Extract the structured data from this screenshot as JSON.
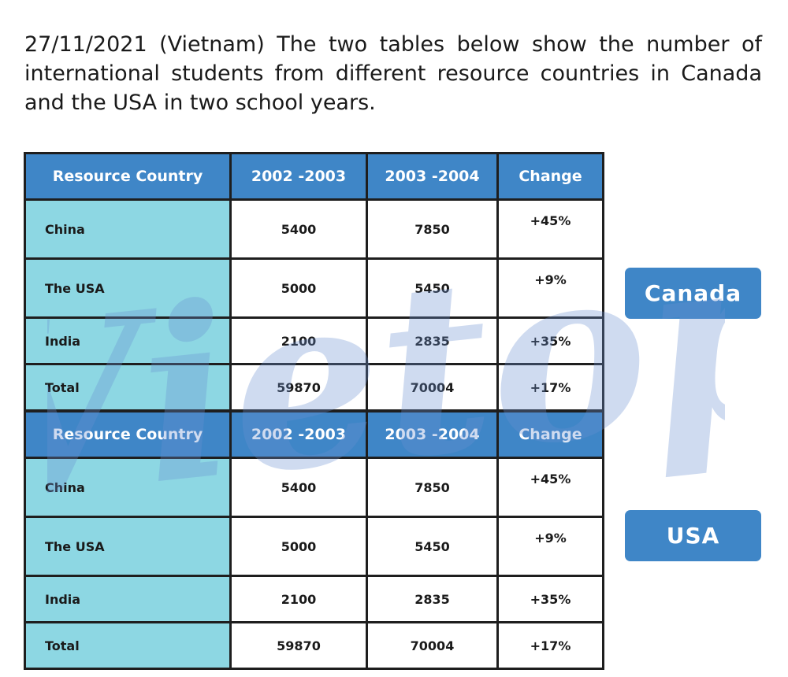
{
  "intro_text": "27/11/2021 (Vietnam) The two tables below show the number of international students from different resource countries in Canada and the USA in two school years.",
  "watermark_text": "Vietop",
  "chart_data": [
    {
      "type": "table",
      "title": "Canada",
      "columns": [
        "Resource Country",
        "2002 -2003",
        "2003 -2004",
        "Change"
      ],
      "rows": [
        [
          "China",
          "5400",
          "7850",
          "+45%"
        ],
        [
          "The USA",
          "5000",
          "5450",
          "+9%"
        ],
        [
          "India",
          "2100",
          "2835",
          "+35%"
        ],
        [
          "Total",
          "59870",
          "70004",
          "+17%"
        ]
      ]
    },
    {
      "type": "table",
      "title": "USA",
      "columns": [
        "Resource Country",
        "2002 -2003",
        "2003 -2004",
        "Change"
      ],
      "rows": [
        [
          "China",
          "5400",
          "7850",
          "+45%"
        ],
        [
          "The USA",
          "5000",
          "5450",
          "+9%"
        ],
        [
          "India",
          "2100",
          "2835",
          "+35%"
        ],
        [
          "Total",
          "59870",
          "70004",
          "+17%"
        ]
      ]
    }
  ],
  "colors": {
    "header_bg": "#3f86c7",
    "country_bg": "#8dd7e3",
    "label_bg": "#3f86c7",
    "watermark": "#6a8fd0"
  }
}
